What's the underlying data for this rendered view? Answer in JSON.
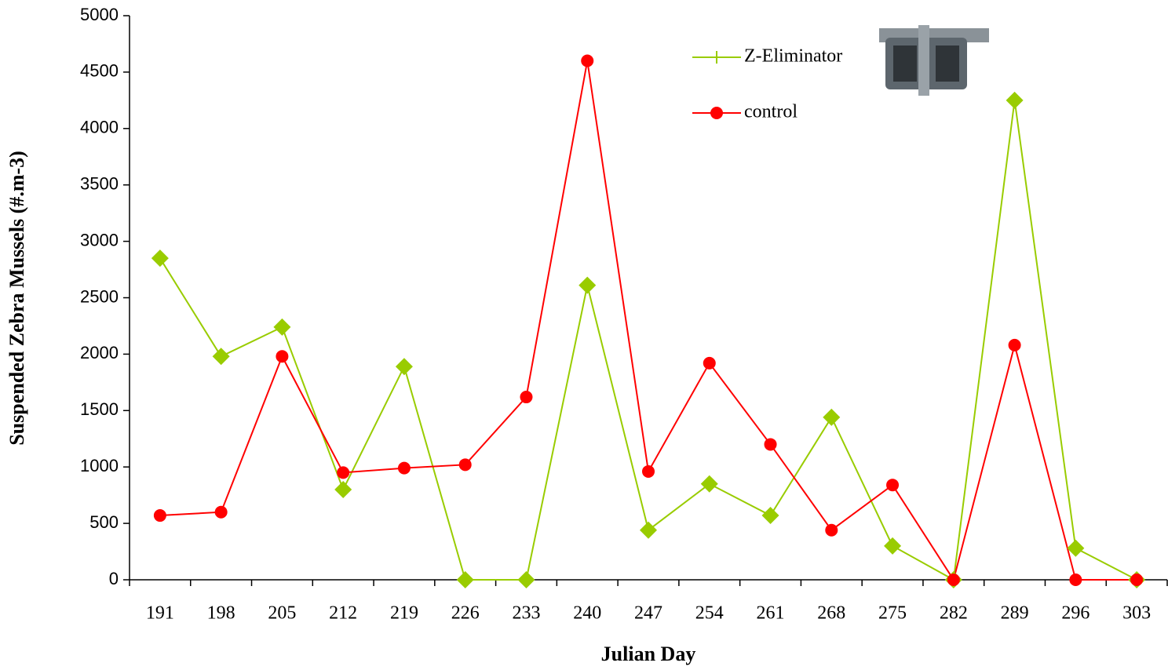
{
  "chart_data": {
    "type": "line",
    "x_label": "Julian Day",
    "y_label": "Suspended Zebra Mussels (#.m-3)",
    "categories": [
      "191",
      "198",
      "205",
      "212",
      "219",
      "226",
      "233",
      "240",
      "247",
      "254",
      "261",
      "268",
      "275",
      "282",
      "289",
      "296",
      "303"
    ],
    "series": [
      {
        "name": "Z-Eliminator",
        "color": "#99cc00",
        "marker": "diamond",
        "values": [
          2850,
          1980,
          2240,
          800,
          1890,
          0,
          0,
          2610,
          440,
          850,
          570,
          1440,
          300,
          0,
          4250,
          280,
          0
        ]
      },
      {
        "name": "control",
        "color": "#ff0000",
        "marker": "circle",
        "values": [
          570,
          600,
          1980,
          950,
          990,
          1020,
          1620,
          4600,
          960,
          1920,
          1200,
          440,
          840,
          0,
          2080,
          0,
          0
        ]
      }
    ],
    "ylim": [
      0,
      5000
    ],
    "yticks": [
      0,
      500,
      1000,
      1500,
      2000,
      2500,
      3000,
      3500,
      4000,
      4500,
      5000
    ],
    "grid": false
  }
}
